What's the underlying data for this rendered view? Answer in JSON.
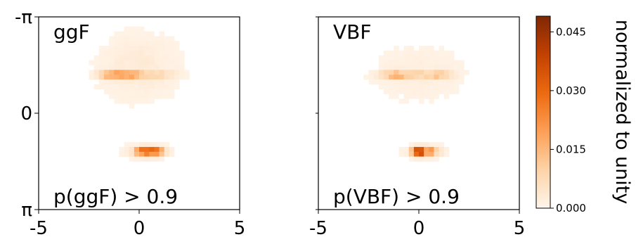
{
  "colors": {
    "cmap": [
      "#fff5eb",
      "#fdd3a7",
      "#fd9f56",
      "#ec6a10",
      "#c34102",
      "#7f2704"
    ],
    "axis": "#000000",
    "background": "#ffffff"
  },
  "chart_data": [
    {
      "type": "heatmap",
      "panel": "ggF",
      "panel_label": "ggF",
      "annotation": "p(ggF) > 0.9",
      "xlim": [
        -5,
        5
      ],
      "ylim": [
        "-π",
        "π"
      ],
      "x_ticks": [
        "-5",
        "0",
        "5"
      ],
      "y_ticks": [
        "-π",
        "0",
        "π"
      ],
      "blobs": [
        {
          "x": -1.3,
          "y": -1.25,
          "sx": 0.45,
          "sy": 0.08,
          "peak": 0.022
        },
        {
          "x": -0.3,
          "y": -1.25,
          "sx": 0.5,
          "sy": 0.08,
          "peak": 0.016
        },
        {
          "x": 1.1,
          "y": -1.25,
          "sx": 0.5,
          "sy": 0.08,
          "peak": 0.008
        },
        {
          "x": 0.0,
          "y": -1.5,
          "sx": 1.3,
          "sy": 0.7,
          "peak": 0.003
        },
        {
          "x": 0.3,
          "y": 1.25,
          "sx": 0.35,
          "sy": 0.08,
          "peak": 0.034
        },
        {
          "x": 0.95,
          "y": 1.25,
          "sx": 0.25,
          "sy": 0.08,
          "peak": 0.02
        },
        {
          "x": 0.4,
          "y": 1.25,
          "sx": 0.7,
          "sy": 0.15,
          "peak": 0.005
        }
      ]
    },
    {
      "type": "heatmap",
      "panel": "VBF",
      "panel_label": "VBF",
      "annotation": "p(VBF) > 0.9",
      "xlim": [
        -5,
        5
      ],
      "ylim": [
        "-π",
        "π"
      ],
      "x_ticks": [
        "-5",
        "0",
        "5"
      ],
      "y_ticks": [],
      "blobs": [
        {
          "x": -1.2,
          "y": -1.25,
          "sx": 0.5,
          "sy": 0.08,
          "peak": 0.017
        },
        {
          "x": 1.0,
          "y": -1.25,
          "sx": 0.45,
          "sy": 0.08,
          "peak": 0.014
        },
        {
          "x": -0.1,
          "y": -1.25,
          "sx": 0.5,
          "sy": 0.08,
          "peak": 0.008
        },
        {
          "x": 0.0,
          "y": -1.3,
          "sx": 1.5,
          "sy": 0.6,
          "peak": 0.002
        },
        {
          "x": -0.05,
          "y": 1.25,
          "sx": 0.2,
          "sy": 0.08,
          "peak": 0.047
        },
        {
          "x": 0.5,
          "y": 1.25,
          "sx": 0.3,
          "sy": 0.08,
          "peak": 0.024
        },
        {
          "x": 0.3,
          "y": 1.25,
          "sx": 0.6,
          "sy": 0.15,
          "peak": 0.005
        }
      ]
    }
  ],
  "colorbar": {
    "label": "normalized to unity",
    "min": 0.0,
    "max": 0.049,
    "ticks": [
      {
        "value": 0.0,
        "label": "0.000"
      },
      {
        "value": 0.015,
        "label": "0.015"
      },
      {
        "value": 0.03,
        "label": "0.030"
      },
      {
        "value": 0.045,
        "label": "0.045"
      }
    ]
  }
}
